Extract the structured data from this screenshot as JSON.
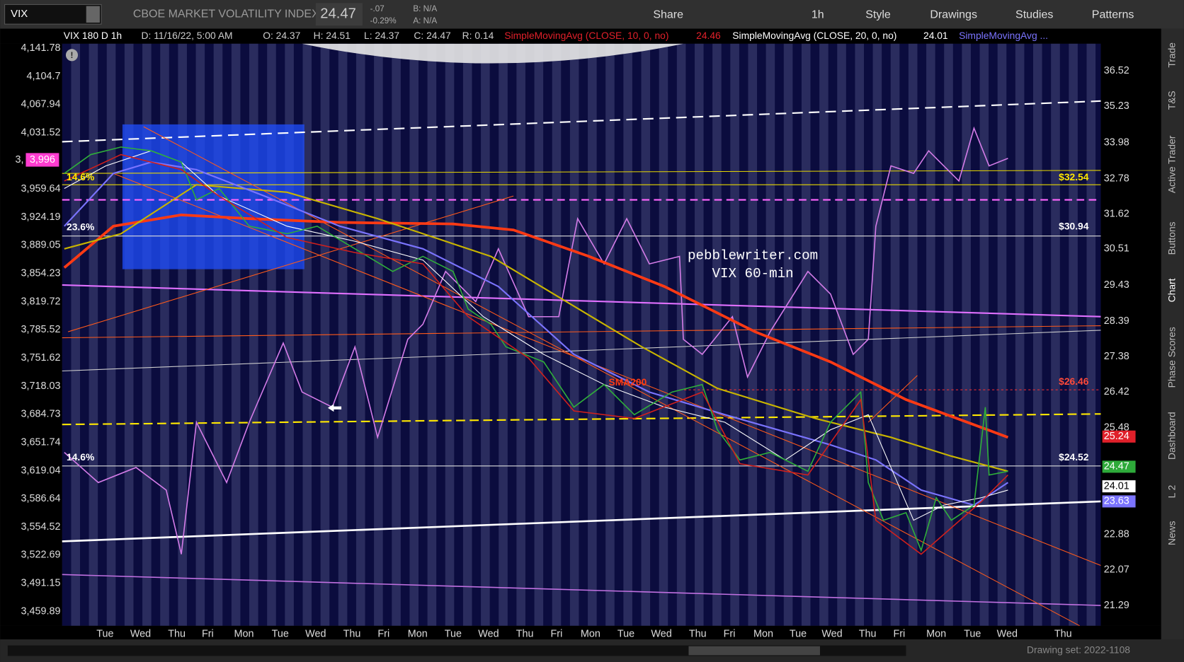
{
  "toolbar": {
    "symbol": "VIX",
    "description": "CBOE MARKET VOLATILITY INDEX",
    "last": "24.47",
    "change": "-.07",
    "change_pct": "-0.29%",
    "bid": "B: N/A",
    "ask": "A: N/A",
    "buttons": [
      "Share",
      "1h",
      "Style",
      "Drawings",
      "Studies",
      "Patterns"
    ]
  },
  "header": {
    "chart": "VIX 180 D 1h",
    "date": "D: 11/16/22, 5:00 AM",
    "open": "O: 24.37",
    "high": "H: 24.51",
    "low": "L: 24.37",
    "close": "C: 24.47",
    "range": "R: 0.14",
    "studies": [
      {
        "text": "SimpleMovingAvg (CLOSE, 10, 0, no)",
        "value": "24.46"
      },
      {
        "text": "SimpleMovingAvg (CLOSE, 20, 0, no)",
        "value": "24.01"
      },
      {
        "text": "SimpleMovingAvg ..."
      }
    ]
  },
  "left_axis": {
    "ticks": [
      "4,141.78",
      "4,104.7",
      "4,067.94",
      "4,031.52",
      "3,959.64",
      "3,924.19",
      "3,889.05",
      "3,854.23",
      "3,819.72",
      "3,785.52",
      "3,751.62",
      "3,718.03",
      "3,684.73",
      "3,651.74",
      "3,619.04",
      "3,586.64",
      "3,554.52",
      "3,522.69",
      "3,491.15",
      "3,459.89"
    ],
    "marker": "3,996"
  },
  "right_axis": {
    "ticks": [
      "36.52",
      "35.23",
      "33.98",
      "32.78",
      "31.62",
      "30.51",
      "29.43",
      "28.39",
      "27.38",
      "26.42",
      "25.48",
      "22.88",
      "22.07",
      "21.29"
    ],
    "tags": [
      {
        "label": "25.24",
        "color": "#e0202a"
      },
      {
        "label": "24.47",
        "color": "#2eaa3a"
      },
      {
        "label": "24.01",
        "color": "#ffffff"
      },
      {
        "label": "23.63",
        "color": "#7b74ff"
      }
    ]
  },
  "annotations": {
    "level_1": "$32.54",
    "level_2": "$30.94",
    "level_3": "$26.46",
    "level_4": "$24.52",
    "fib_1": "14.6%",
    "fib_2": "23.6%",
    "fib_3": "14.6%",
    "sma": "SMA200",
    "site": "pebblewriter.com",
    "caption": "VIX 60-min"
  },
  "x_axis": {
    "labels": [
      "Tue",
      "Wed",
      "Thu",
      "Fri",
      "Mon",
      "Tue",
      "Wed",
      "Thu",
      "Fri",
      "Mon",
      "Tue",
      "Wed",
      "Thu",
      "Fri",
      "Mon",
      "Tue",
      "Wed",
      "Thu",
      "Fri",
      "Mon",
      "Tue",
      "Wed",
      "Thu",
      "Fri",
      "Mon",
      "Tue",
      "Wed",
      "Thu"
    ]
  },
  "side_tabs": [
    "Trade",
    "T&S",
    "Active Trader",
    "Buttons",
    "Chart",
    "Phase Scores",
    "Dashboard",
    "L 2",
    "News"
  ],
  "footer": {
    "drawing_set": "Drawing set: 2022-1108"
  }
}
